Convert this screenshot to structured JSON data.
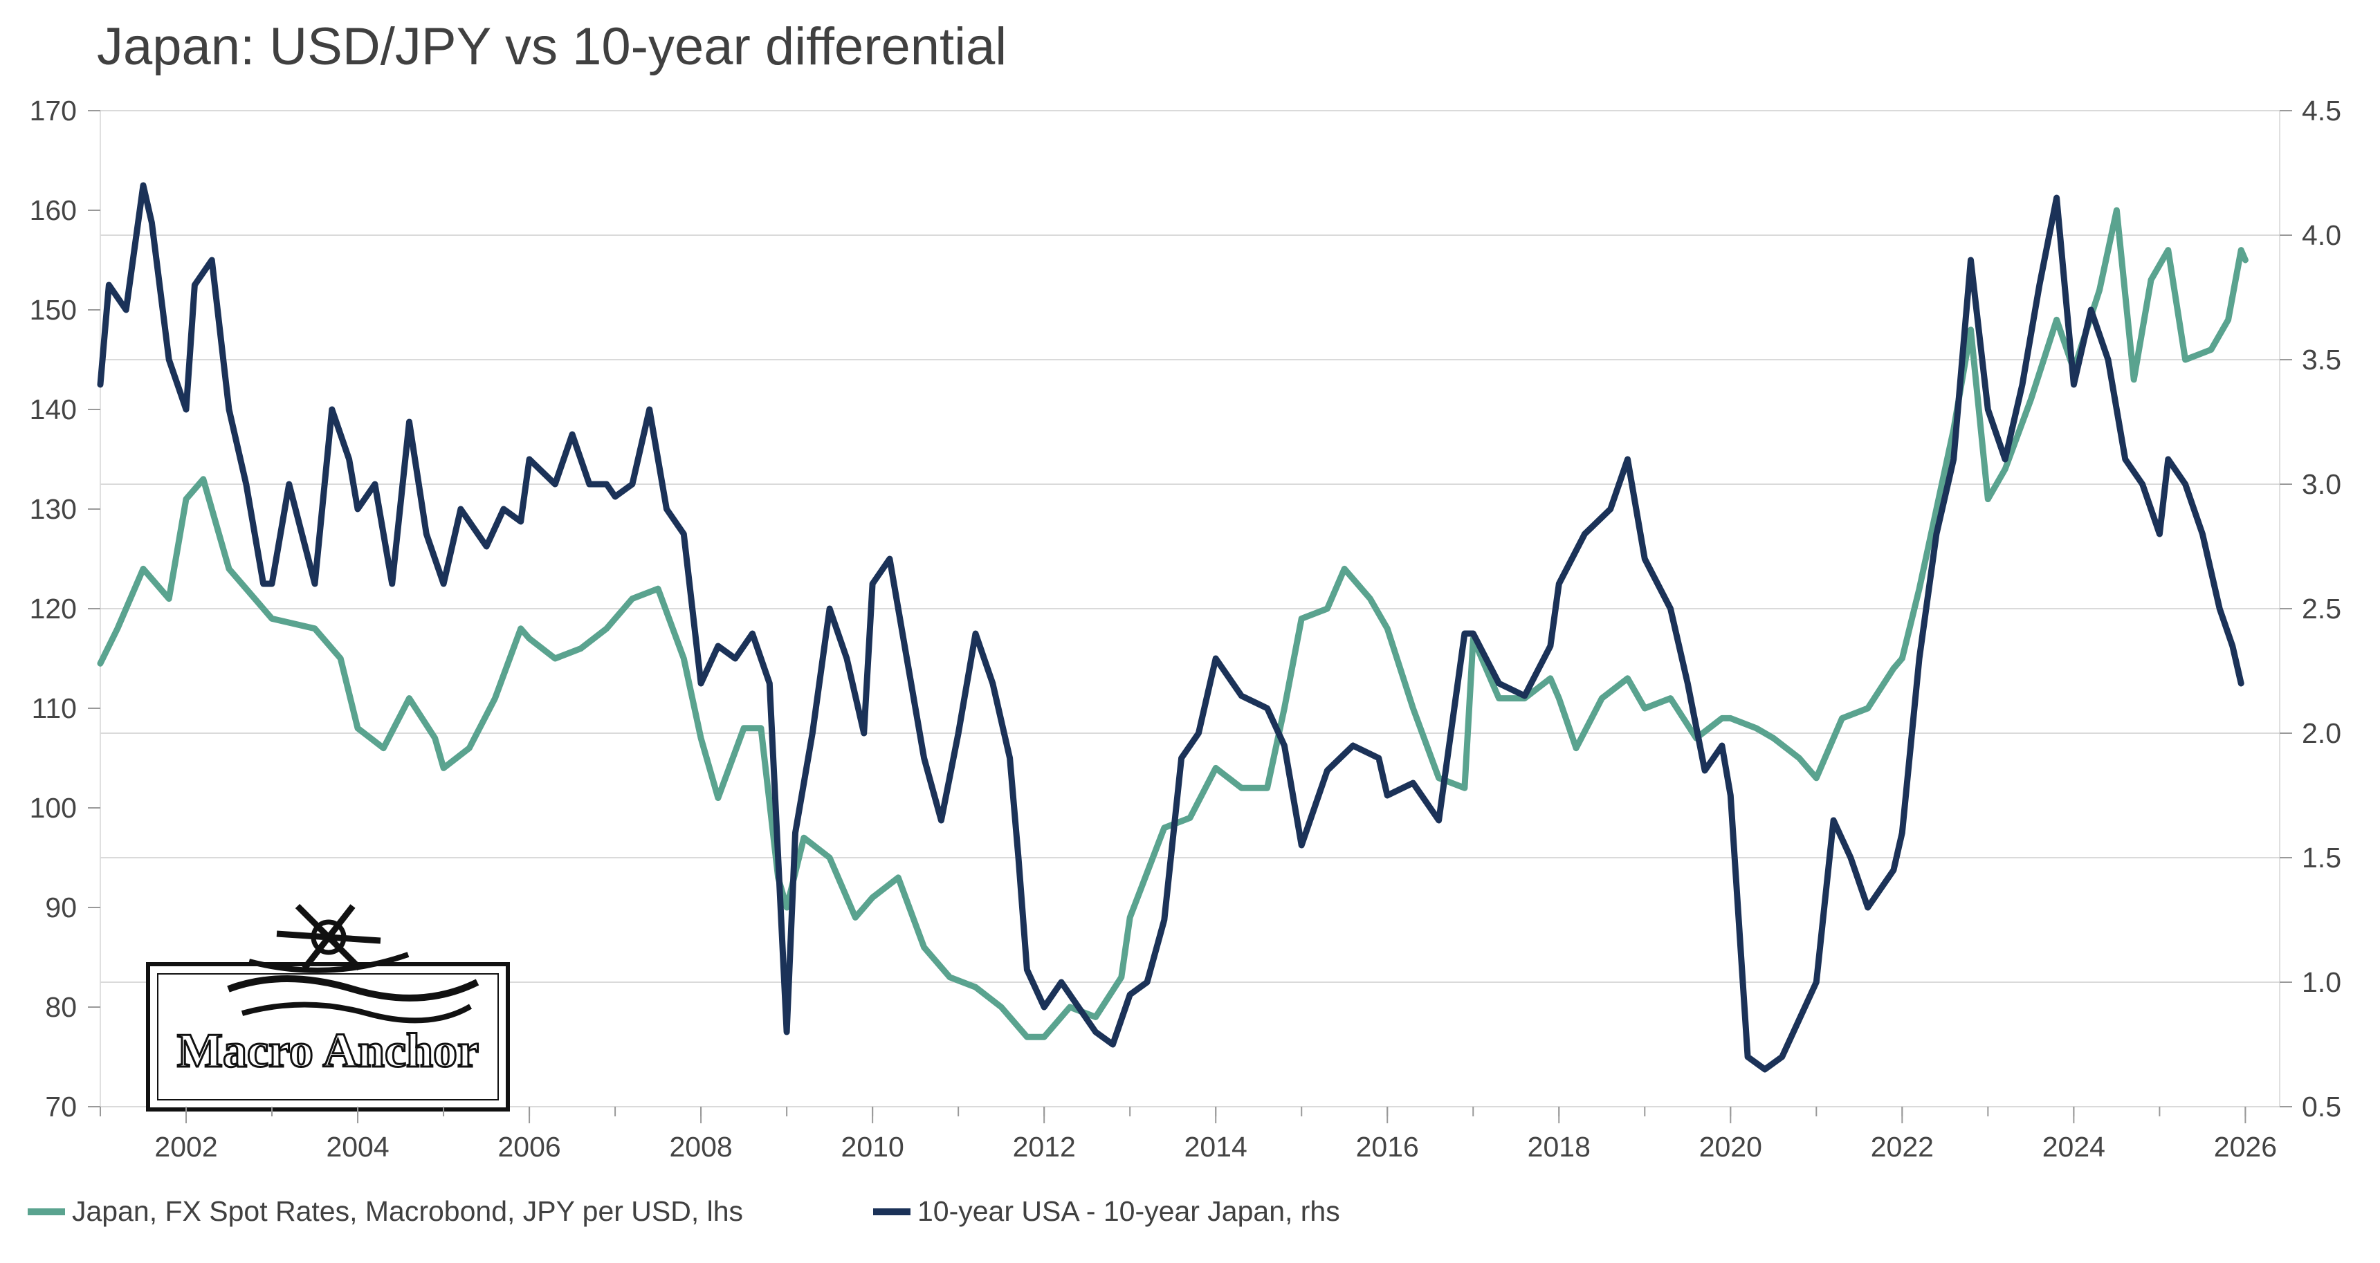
{
  "chart_data": {
    "type": "line",
    "title": "Japan: USD/JPY vs 10-year differential",
    "left_axis": {
      "ticks": [
        70,
        80,
        90,
        100,
        110,
        120,
        130,
        140,
        150,
        160,
        170
      ],
      "range": [
        70,
        170
      ]
    },
    "right_axis": {
      "ticks": [
        "0.5",
        "1.0",
        "1.5",
        "2.0",
        "2.5",
        "3.0",
        "3.5",
        "4.0",
        "4.5"
      ],
      "range": [
        0.5,
        4.5
      ]
    },
    "x_ticks": [
      "2002",
      "2004",
      "2006",
      "2008",
      "2010",
      "2012",
      "2014",
      "2016",
      "2018",
      "2020",
      "2022",
      "2024",
      "2026"
    ],
    "x_range": [
      2001.0,
      2026.4
    ],
    "grid": "horizontal",
    "legend_position": "bottom",
    "series": [
      {
        "name": "Japan, FX Spot Rates, Macrobond, JPY per USD, lhs",
        "axis": "left",
        "color": "#5aa38f",
        "points": [
          [
            2001.0,
            114.5
          ],
          [
            2001.2,
            118
          ],
          [
            2001.5,
            124
          ],
          [
            2001.8,
            121
          ],
          [
            2002.0,
            131
          ],
          [
            2002.2,
            133
          ],
          [
            2002.5,
            124
          ],
          [
            2002.8,
            121
          ],
          [
            2003.0,
            119
          ],
          [
            2003.5,
            118
          ],
          [
            2003.8,
            115
          ],
          [
            2004.0,
            108
          ],
          [
            2004.3,
            106
          ],
          [
            2004.6,
            111
          ],
          [
            2004.9,
            107
          ],
          [
            2005.0,
            104
          ],
          [
            2005.3,
            106
          ],
          [
            2005.6,
            111
          ],
          [
            2005.9,
            118
          ],
          [
            2006.0,
            117
          ],
          [
            2006.3,
            115
          ],
          [
            2006.6,
            116
          ],
          [
            2006.9,
            118
          ],
          [
            2007.2,
            121
          ],
          [
            2007.5,
            122
          ],
          [
            2007.8,
            115
          ],
          [
            2008.0,
            107
          ],
          [
            2008.2,
            101
          ],
          [
            2008.5,
            108
          ],
          [
            2008.7,
            108
          ],
          [
            2008.9,
            93
          ],
          [
            2009.0,
            90
          ],
          [
            2009.2,
            97
          ],
          [
            2009.5,
            95
          ],
          [
            2009.8,
            89
          ],
          [
            2010.0,
            91
          ],
          [
            2010.3,
            93
          ],
          [
            2010.6,
            86
          ],
          [
            2010.9,
            83
          ],
          [
            2011.2,
            82
          ],
          [
            2011.5,
            80
          ],
          [
            2011.8,
            77
          ],
          [
            2012.0,
            77
          ],
          [
            2012.3,
            80
          ],
          [
            2012.6,
            79
          ],
          [
            2012.9,
            83
          ],
          [
            2013.0,
            89
          ],
          [
            2013.4,
            98
          ],
          [
            2013.7,
            99
          ],
          [
            2014.0,
            104
          ],
          [
            2014.3,
            102
          ],
          [
            2014.6,
            102
          ],
          [
            2014.8,
            110
          ],
          [
            2015.0,
            119
          ],
          [
            2015.3,
            120
          ],
          [
            2015.5,
            124
          ],
          [
            2015.8,
            121
          ],
          [
            2016.0,
            118
          ],
          [
            2016.3,
            110
          ],
          [
            2016.6,
            103
          ],
          [
            2016.9,
            102
          ],
          [
            2017.0,
            117
          ],
          [
            2017.3,
            111
          ],
          [
            2017.6,
            111
          ],
          [
            2017.9,
            113
          ],
          [
            2018.0,
            111
          ],
          [
            2018.2,
            106
          ],
          [
            2018.5,
            111
          ],
          [
            2018.8,
            113
          ],
          [
            2019.0,
            110
          ],
          [
            2019.3,
            111
          ],
          [
            2019.6,
            107
          ],
          [
            2019.9,
            109
          ],
          [
            2020.0,
            109
          ],
          [
            2020.3,
            108
          ],
          [
            2020.5,
            107
          ],
          [
            2020.8,
            105
          ],
          [
            2021.0,
            103
          ],
          [
            2021.3,
            109
          ],
          [
            2021.6,
            110
          ],
          [
            2021.9,
            114
          ],
          [
            2022.0,
            115
          ],
          [
            2022.2,
            122
          ],
          [
            2022.4,
            130
          ],
          [
            2022.6,
            138
          ],
          [
            2022.8,
            148
          ],
          [
            2023.0,
            131
          ],
          [
            2023.2,
            134
          ],
          [
            2023.5,
            141
          ],
          [
            2023.8,
            149
          ],
          [
            2024.0,
            144
          ],
          [
            2024.3,
            152
          ],
          [
            2024.5,
            160
          ],
          [
            2024.7,
            143
          ],
          [
            2024.9,
            153
          ],
          [
            2025.1,
            156
          ],
          [
            2025.3,
            145
          ],
          [
            2025.6,
            146
          ],
          [
            2025.8,
            149
          ],
          [
            2025.95,
            156
          ],
          [
            2026.0,
            155
          ]
        ]
      },
      {
        "name": "10-year USA - 10-year Japan, rhs",
        "axis": "right",
        "color": "#1b3258",
        "points": [
          [
            2001.0,
            3.4
          ],
          [
            2001.1,
            3.8
          ],
          [
            2001.3,
            3.7
          ],
          [
            2001.5,
            4.2
          ],
          [
            2001.6,
            4.05
          ],
          [
            2001.8,
            3.5
          ],
          [
            2002.0,
            3.3
          ],
          [
            2002.1,
            3.8
          ],
          [
            2002.3,
            3.9
          ],
          [
            2002.5,
            3.3
          ],
          [
            2002.7,
            3.0
          ],
          [
            2002.9,
            2.6
          ],
          [
            2003.0,
            2.6
          ],
          [
            2003.2,
            3.0
          ],
          [
            2003.5,
            2.6
          ],
          [
            2003.7,
            3.3
          ],
          [
            2003.9,
            3.1
          ],
          [
            2004.0,
            2.9
          ],
          [
            2004.2,
            3.0
          ],
          [
            2004.4,
            2.6
          ],
          [
            2004.6,
            3.25
          ],
          [
            2004.8,
            2.8
          ],
          [
            2005.0,
            2.6
          ],
          [
            2005.2,
            2.9
          ],
          [
            2005.5,
            2.75
          ],
          [
            2005.7,
            2.9
          ],
          [
            2005.9,
            2.85
          ],
          [
            2006.0,
            3.1
          ],
          [
            2006.3,
            3.0
          ],
          [
            2006.5,
            3.2
          ],
          [
            2006.7,
            3.0
          ],
          [
            2006.9,
            3.0
          ],
          [
            2007.0,
            2.95
          ],
          [
            2007.2,
            3.0
          ],
          [
            2007.4,
            3.3
          ],
          [
            2007.6,
            2.9
          ],
          [
            2007.8,
            2.8
          ],
          [
            2008.0,
            2.2
          ],
          [
            2008.2,
            2.35
          ],
          [
            2008.4,
            2.3
          ],
          [
            2008.6,
            2.4
          ],
          [
            2008.8,
            2.2
          ],
          [
            2009.0,
            0.8
          ],
          [
            2009.1,
            1.6
          ],
          [
            2009.3,
            2.0
          ],
          [
            2009.5,
            2.5
          ],
          [
            2009.7,
            2.3
          ],
          [
            2009.9,
            2.0
          ],
          [
            2010.0,
            2.6
          ],
          [
            2010.2,
            2.7
          ],
          [
            2010.4,
            2.3
          ],
          [
            2010.6,
            1.9
          ],
          [
            2010.8,
            1.65
          ],
          [
            2011.0,
            2.0
          ],
          [
            2011.2,
            2.4
          ],
          [
            2011.4,
            2.2
          ],
          [
            2011.6,
            1.9
          ],
          [
            2011.7,
            1.5
          ],
          [
            2011.8,
            1.05
          ],
          [
            2012.0,
            0.9
          ],
          [
            2012.2,
            1.0
          ],
          [
            2012.4,
            0.9
          ],
          [
            2012.6,
            0.8
          ],
          [
            2012.8,
            0.75
          ],
          [
            2013.0,
            0.95
          ],
          [
            2013.2,
            1.0
          ],
          [
            2013.4,
            1.25
          ],
          [
            2013.6,
            1.9
          ],
          [
            2013.8,
            2.0
          ],
          [
            2014.0,
            2.3
          ],
          [
            2014.3,
            2.15
          ],
          [
            2014.6,
            2.1
          ],
          [
            2014.8,
            1.95
          ],
          [
            2015.0,
            1.55
          ],
          [
            2015.3,
            1.85
          ],
          [
            2015.6,
            1.95
          ],
          [
            2015.9,
            1.9
          ],
          [
            2016.0,
            1.75
          ],
          [
            2016.3,
            1.8
          ],
          [
            2016.6,
            1.65
          ],
          [
            2016.9,
            2.4
          ],
          [
            2017.0,
            2.4
          ],
          [
            2017.3,
            2.2
          ],
          [
            2017.6,
            2.15
          ],
          [
            2017.9,
            2.35
          ],
          [
            2018.0,
            2.6
          ],
          [
            2018.3,
            2.8
          ],
          [
            2018.6,
            2.9
          ],
          [
            2018.8,
            3.1
          ],
          [
            2019.0,
            2.7
          ],
          [
            2019.3,
            2.5
          ],
          [
            2019.5,
            2.2
          ],
          [
            2019.7,
            1.85
          ],
          [
            2019.9,
            1.95
          ],
          [
            2020.0,
            1.75
          ],
          [
            2020.2,
            0.7
          ],
          [
            2020.4,
            0.65
          ],
          [
            2020.6,
            0.7
          ],
          [
            2020.8,
            0.85
          ],
          [
            2021.0,
            1.0
          ],
          [
            2021.2,
            1.65
          ],
          [
            2021.4,
            1.5
          ],
          [
            2021.6,
            1.3
          ],
          [
            2021.9,
            1.45
          ],
          [
            2022.0,
            1.6
          ],
          [
            2022.2,
            2.3
          ],
          [
            2022.4,
            2.8
          ],
          [
            2022.6,
            3.1
          ],
          [
            2022.8,
            3.9
          ],
          [
            2023.0,
            3.3
          ],
          [
            2023.2,
            3.1
          ],
          [
            2023.4,
            3.4
          ],
          [
            2023.6,
            3.8
          ],
          [
            2023.8,
            4.15
          ],
          [
            2024.0,
            3.4
          ],
          [
            2024.2,
            3.7
          ],
          [
            2024.4,
            3.5
          ],
          [
            2024.6,
            3.1
          ],
          [
            2024.8,
            3.0
          ],
          [
            2025.0,
            2.8
          ],
          [
            2025.1,
            3.1
          ],
          [
            2025.3,
            3.0
          ],
          [
            2025.5,
            2.8
          ],
          [
            2025.7,
            2.5
          ],
          [
            2025.85,
            2.35
          ],
          [
            2025.95,
            2.2
          ]
        ]
      }
    ]
  },
  "legend": [
    {
      "label": "Japan, FX Spot Rates, Macrobond, JPY per USD, lhs",
      "color": "#5aa38f"
    },
    {
      "label": "10-year USA - 10-year Japan, rhs",
      "color": "#1b3258"
    }
  ],
  "logo": {
    "text": "Macro Anchor"
  }
}
